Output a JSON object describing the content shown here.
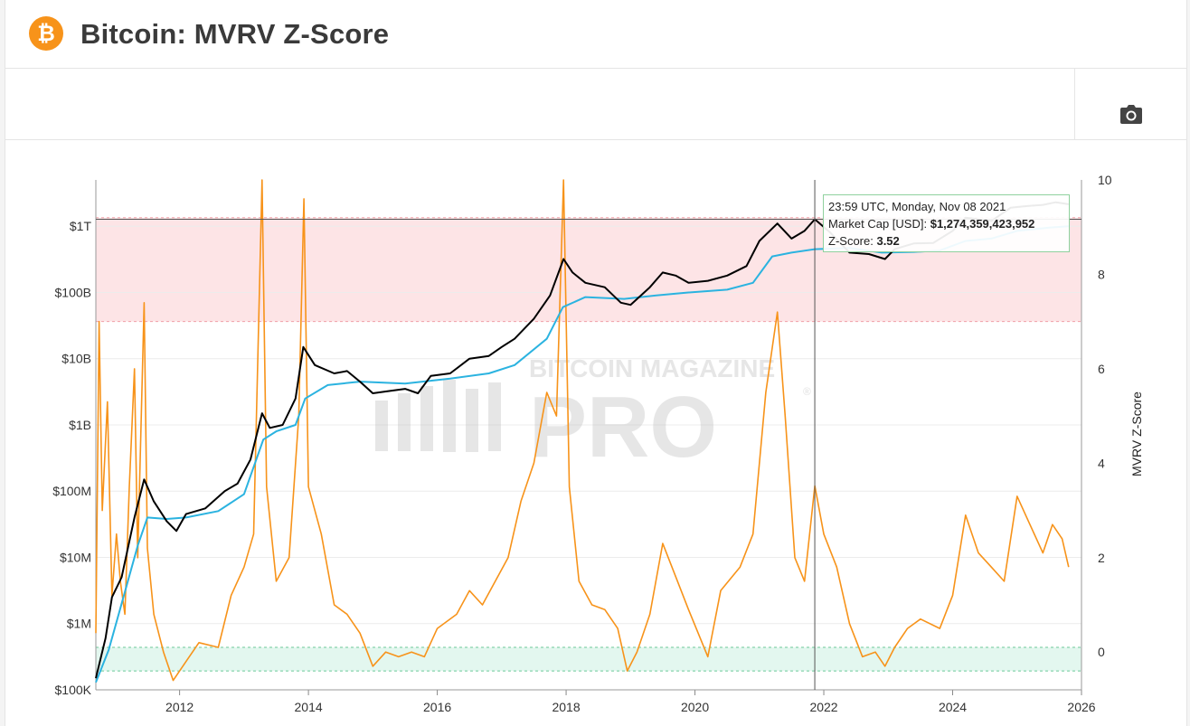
{
  "header": {
    "logo_glyph": "₿",
    "logo_icon": "bitcoin-logo-icon",
    "title": "Bitcoin: MVRV Z-Score"
  },
  "toolbar": {
    "camera_icon": "camera-icon"
  },
  "watermark": {
    "line1": "BITCOIN MAGAZINE",
    "line2": "PRO",
    "mark": "®"
  },
  "tooltip": {
    "time": "23:59 UTC, Monday, Nov 08 2021",
    "market_cap_label": "Market Cap [USD]:",
    "market_cap_value": "$1,274,359,423,952",
    "zscore_label": "Z-Score:",
    "zscore_value": "3.52"
  },
  "colors": {
    "market_cap": "#000000",
    "realized_cap": "#2bb3e0",
    "zscore": "#f7931a",
    "overvalued_band": "#fde4e6",
    "undervalued_band": "#e3f7ef"
  },
  "chart_data": {
    "type": "line",
    "title": "Bitcoin: MVRV Z-Score",
    "x_ticks": [
      "2012",
      "2014",
      "2016",
      "2018",
      "2020",
      "2022",
      "2024",
      "2026"
    ],
    "x_range": [
      2010.7,
      2026.0
    ],
    "y_left": {
      "scale": "log",
      "ticks": [
        "$100K",
        "$1M",
        "$10M",
        "$100M",
        "$1B",
        "$10B",
        "$100B",
        "$1T"
      ],
      "range": [
        100000,
        5000000000000
      ]
    },
    "y_right": {
      "label": "MVRV Z-Score",
      "ticks": [
        "0",
        "2",
        "4",
        "6",
        "8",
        "10"
      ],
      "range": [
        -0.8,
        10
      ]
    },
    "bands": [
      {
        "axis": "right",
        "from": 7.0,
        "to": 9.2
      },
      {
        "axis": "right",
        "from": -0.4,
        "to": 0.1
      }
    ],
    "crosshair": {
      "x": 2021.86
    },
    "series": [
      {
        "key": "market_cap",
        "axis": "left",
        "points": [
          [
            2010.7,
            150000
          ],
          [
            2010.85,
            600000
          ],
          [
            2010.95,
            2500000
          ],
          [
            2011.1,
            5000000
          ],
          [
            2011.3,
            40000000
          ],
          [
            2011.45,
            150000000
          ],
          [
            2011.6,
            70000000
          ],
          [
            2011.8,
            35000000
          ],
          [
            2011.95,
            25000000
          ],
          [
            2012.1,
            45000000
          ],
          [
            2012.4,
            55000000
          ],
          [
            2012.7,
            100000000
          ],
          [
            2012.9,
            130000000
          ],
          [
            2013.1,
            300000000
          ],
          [
            2013.28,
            1500000000
          ],
          [
            2013.4,
            900000000
          ],
          [
            2013.6,
            1000000000
          ],
          [
            2013.8,
            2500000000
          ],
          [
            2013.92,
            15000000000
          ],
          [
            2014.1,
            8000000000
          ],
          [
            2014.4,
            6000000000
          ],
          [
            2014.6,
            6500000000
          ],
          [
            2014.8,
            4500000000
          ],
          [
            2015.0,
            3000000000
          ],
          [
            2015.2,
            3200000000
          ],
          [
            2015.5,
            3500000000
          ],
          [
            2015.7,
            3000000000
          ],
          [
            2015.9,
            5500000000
          ],
          [
            2016.2,
            6000000000
          ],
          [
            2016.5,
            10000000000
          ],
          [
            2016.8,
            11000000000
          ],
          [
            2017.0,
            15000000000
          ],
          [
            2017.2,
            20000000000
          ],
          [
            2017.5,
            40000000000
          ],
          [
            2017.75,
            90000000000
          ],
          [
            2017.96,
            320000000000
          ],
          [
            2018.1,
            200000000000
          ],
          [
            2018.3,
            140000000000
          ],
          [
            2018.6,
            120000000000
          ],
          [
            2018.85,
            70000000000
          ],
          [
            2019.0,
            65000000000
          ],
          [
            2019.3,
            120000000000
          ],
          [
            2019.5,
            200000000000
          ],
          [
            2019.7,
            180000000000
          ],
          [
            2019.9,
            140000000000
          ],
          [
            2020.2,
            150000000000
          ],
          [
            2020.5,
            180000000000
          ],
          [
            2020.8,
            250000000000
          ],
          [
            2021.0,
            600000000000
          ],
          [
            2021.28,
            1100000000000
          ],
          [
            2021.5,
            650000000000
          ],
          [
            2021.7,
            850000000000
          ],
          [
            2021.86,
            1274000000000
          ],
          [
            2022.1,
            800000000000
          ],
          [
            2022.4,
            400000000000
          ],
          [
            2022.7,
            380000000000
          ],
          [
            2022.95,
            320000000000
          ],
          [
            2023.1,
            450000000000
          ],
          [
            2023.4,
            550000000000
          ],
          [
            2023.7,
            560000000000
          ],
          [
            2024.0,
            850000000000
          ],
          [
            2024.2,
            1350000000000
          ],
          [
            2024.6,
            1200000000000
          ],
          [
            2024.9,
            1900000000000
          ],
          [
            2025.1,
            2000000000000
          ],
          [
            2025.4,
            2100000000000
          ],
          [
            2025.6,
            2300000000000
          ],
          [
            2025.8,
            2150000000000
          ]
        ]
      },
      {
        "key": "realized_cap",
        "axis": "left",
        "points": [
          [
            2010.7,
            130000
          ],
          [
            2010.9,
            400000
          ],
          [
            2011.1,
            2000000
          ],
          [
            2011.35,
            15000000
          ],
          [
            2011.5,
            40000000
          ],
          [
            2011.8,
            38000000
          ],
          [
            2012.1,
            40000000
          ],
          [
            2012.6,
            50000000
          ],
          [
            2013.0,
            90000000
          ],
          [
            2013.3,
            600000000
          ],
          [
            2013.5,
            800000000
          ],
          [
            2013.8,
            1000000000
          ],
          [
            2013.95,
            2500000000
          ],
          [
            2014.3,
            4000000000
          ],
          [
            2014.8,
            4500000000
          ],
          [
            2015.5,
            4200000000
          ],
          [
            2016.2,
            5000000000
          ],
          [
            2016.8,
            6000000000
          ],
          [
            2017.2,
            8000000000
          ],
          [
            2017.7,
            20000000000
          ],
          [
            2017.95,
            60000000000
          ],
          [
            2018.3,
            85000000000
          ],
          [
            2018.9,
            80000000000
          ],
          [
            2019.4,
            90000000000
          ],
          [
            2019.9,
            100000000000
          ],
          [
            2020.5,
            110000000000
          ],
          [
            2020.9,
            140000000000
          ],
          [
            2021.2,
            350000000000
          ],
          [
            2021.5,
            400000000000
          ],
          [
            2021.86,
            450000000000
          ],
          [
            2022.4,
            470000000000
          ],
          [
            2022.9,
            400000000000
          ],
          [
            2023.4,
            410000000000
          ],
          [
            2023.8,
            430000000000
          ],
          [
            2024.2,
            600000000000
          ],
          [
            2024.6,
            650000000000
          ],
          [
            2025.0,
            850000000000
          ],
          [
            2025.5,
            950000000000
          ],
          [
            2025.8,
            1000000000000
          ]
        ]
      },
      {
        "key": "zscore",
        "axis": "right",
        "points": [
          [
            2010.7,
            0.4
          ],
          [
            2010.75,
            7.0
          ],
          [
            2010.8,
            3.0
          ],
          [
            2010.88,
            5.3
          ],
          [
            2010.95,
            1.2
          ],
          [
            2011.02,
            2.5
          ],
          [
            2011.08,
            1.5
          ],
          [
            2011.15,
            0.8
          ],
          [
            2011.22,
            3.5
          ],
          [
            2011.3,
            6.0
          ],
          [
            2011.35,
            2.0
          ],
          [
            2011.45,
            7.4
          ],
          [
            2011.5,
            2.2
          ],
          [
            2011.6,
            0.8
          ],
          [
            2011.75,
            0.0
          ],
          [
            2011.9,
            -0.6
          ],
          [
            2012.1,
            -0.2
          ],
          [
            2012.3,
            0.2
          ],
          [
            2012.6,
            0.1
          ],
          [
            2012.8,
            1.2
          ],
          [
            2013.0,
            1.8
          ],
          [
            2013.15,
            2.5
          ],
          [
            2013.28,
            10.0
          ],
          [
            2013.35,
            3.5
          ],
          [
            2013.5,
            1.5
          ],
          [
            2013.7,
            2.0
          ],
          [
            2013.85,
            5.0
          ],
          [
            2013.93,
            9.6
          ],
          [
            2014.0,
            3.5
          ],
          [
            2014.2,
            2.5
          ],
          [
            2014.4,
            1.0
          ],
          [
            2014.6,
            0.8
          ],
          [
            2014.8,
            0.4
          ],
          [
            2015.0,
            -0.3
          ],
          [
            2015.2,
            0.0
          ],
          [
            2015.4,
            -0.1
          ],
          [
            2015.6,
            0.0
          ],
          [
            2015.8,
            -0.1
          ],
          [
            2016.0,
            0.5
          ],
          [
            2016.3,
            0.8
          ],
          [
            2016.5,
            1.3
          ],
          [
            2016.7,
            1.0
          ],
          [
            2016.9,
            1.5
          ],
          [
            2017.1,
            2.0
          ],
          [
            2017.3,
            3.2
          ],
          [
            2017.5,
            4.0
          ],
          [
            2017.7,
            5.5
          ],
          [
            2017.85,
            5.0
          ],
          [
            2017.96,
            10.0
          ],
          [
            2018.05,
            3.5
          ],
          [
            2018.2,
            1.5
          ],
          [
            2018.4,
            1.0
          ],
          [
            2018.6,
            0.9
          ],
          [
            2018.8,
            0.5
          ],
          [
            2018.95,
            -0.4
          ],
          [
            2019.1,
            0.0
          ],
          [
            2019.3,
            0.8
          ],
          [
            2019.5,
            2.3
          ],
          [
            2019.7,
            1.6
          ],
          [
            2019.9,
            0.9
          ],
          [
            2020.2,
            -0.1
          ],
          [
            2020.4,
            1.3
          ],
          [
            2020.7,
            1.8
          ],
          [
            2020.9,
            2.5
          ],
          [
            2021.1,
            5.5
          ],
          [
            2021.28,
            7.2
          ],
          [
            2021.4,
            5.0
          ],
          [
            2021.55,
            2.0
          ],
          [
            2021.7,
            1.5
          ],
          [
            2021.86,
            3.52
          ],
          [
            2022.0,
            2.5
          ],
          [
            2022.2,
            1.8
          ],
          [
            2022.4,
            0.6
          ],
          [
            2022.6,
            -0.1
          ],
          [
            2022.8,
            0.0
          ],
          [
            2022.95,
            -0.3
          ],
          [
            2023.1,
            0.1
          ],
          [
            2023.3,
            0.5
          ],
          [
            2023.5,
            0.7
          ],
          [
            2023.8,
            0.5
          ],
          [
            2024.0,
            1.2
          ],
          [
            2024.2,
            2.9
          ],
          [
            2024.4,
            2.1
          ],
          [
            2024.6,
            1.8
          ],
          [
            2024.8,
            1.5
          ],
          [
            2025.0,
            3.3
          ],
          [
            2025.2,
            2.7
          ],
          [
            2025.4,
            2.1
          ],
          [
            2025.55,
            2.7
          ],
          [
            2025.7,
            2.4
          ],
          [
            2025.8,
            1.8
          ]
        ]
      }
    ]
  }
}
